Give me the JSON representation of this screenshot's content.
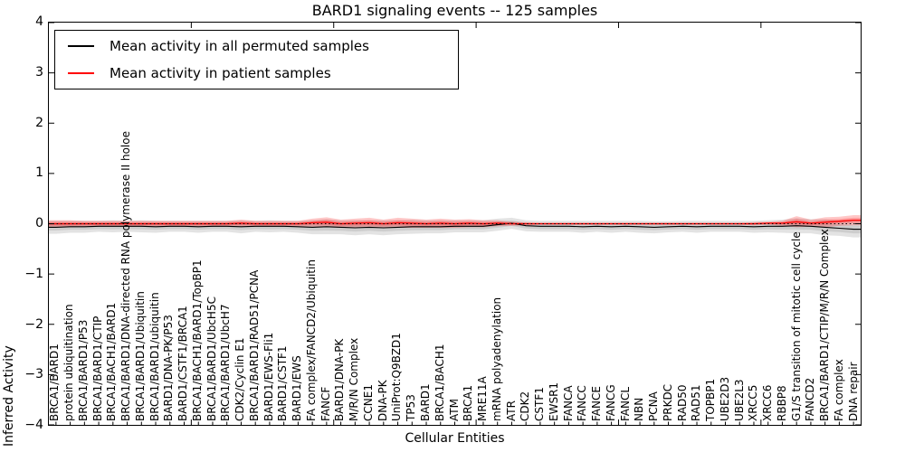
{
  "title": "BARD1 signaling events -- 125 samples",
  "chart_data": {
    "type": "line",
    "title": "BARD1 signaling events -- 125 samples",
    "xlabel": "Cellular Entities",
    "ylabel": "Inferred Activity",
    "ylim": [
      -4,
      4
    ],
    "yticks": [
      4,
      3,
      2,
      1,
      0,
      -1,
      -2,
      -3,
      -4
    ],
    "x_major_tick_every": 10,
    "grid": false,
    "legend_position": "upper left",
    "background_color": "#ffffff",
    "reference_line": {
      "y": 0,
      "color": "#000000",
      "style": "dotted"
    },
    "categories": [
      "BRCA1/BARD1",
      "protein ubiquitination",
      "BRCA1/BARD1/P53",
      "BRCA1/BARD1/CTIP",
      "BRCA1/BACH1/BARD1",
      "BRCA1/BARD1/DNA-directed RNA polymerase II holoe",
      "BRCA1/BARD1/Ubiquitin",
      "BRCA1/BARD1/ubiquitin",
      "BARD1/DNA-PK/P53",
      "BARD1/CSTF1/BRCA1",
      "BRCA1/BACH1/BARD1/TopBP1",
      "BRCA1/BARD1/UbcH5C",
      "BRCA1/BARD1/UbcH7",
      "CDK2/Cyclin E1",
      "BRCA1/BARD1/RAD51/PCNA",
      "BARD1/EWS-Fli1",
      "BARD1/CSTF1",
      "BARD1/EWS",
      "FA complex/FANCD2/Ubiquitin",
      "FANCF",
      "BARD1/DNA-PK",
      "M/R/N Complex",
      "CCNE1",
      "DNA-PK",
      "UniProt:Q9BZD1",
      "TP53",
      "BARD1",
      "BRCA1/BACH1",
      "ATM",
      "BRCA1",
      "MRE11A",
      "mRNA polyadenylation",
      "ATR",
      "CDK2",
      "CSTF1",
      "EWSR1",
      "FANCA",
      "FANCC",
      "FANCE",
      "FANCG",
      "FANCL",
      "NBN",
      "PCNA",
      "PRKDC",
      "RAD50",
      "RAD51",
      "TOPBP1",
      "UBE2D3",
      "UBE2L3",
      "XRCC5",
      "XRCC6",
      "RBBP8",
      "G1/S transition of mitotic cell cycle",
      "FANCD2",
      "BRCA1/BARD1/CTIP/M/R/N Complex",
      "FA complex",
      "DNA repair"
    ],
    "series": [
      {
        "name": "Mean activity in all permuted samples",
        "color": "#000000",
        "band_color": "rgba(128,128,128,0.22)",
        "values": [
          -0.07,
          -0.06,
          -0.06,
          -0.05,
          -0.05,
          -0.05,
          -0.05,
          -0.06,
          -0.05,
          -0.05,
          -0.06,
          -0.05,
          -0.05,
          -0.06,
          -0.05,
          -0.05,
          -0.05,
          -0.06,
          -0.07,
          -0.06,
          -0.07,
          -0.08,
          -0.07,
          -0.08,
          -0.07,
          -0.06,
          -0.06,
          -0.06,
          -0.05,
          -0.05,
          -0.05,
          -0.02,
          0.01,
          -0.04,
          -0.05,
          -0.05,
          -0.05,
          -0.06,
          -0.05,
          -0.06,
          -0.05,
          -0.06,
          -0.07,
          -0.06,
          -0.05,
          -0.06,
          -0.05,
          -0.05,
          -0.05,
          -0.06,
          -0.05,
          -0.05,
          -0.04,
          -0.05,
          -0.07,
          -0.09,
          -0.11
        ],
        "band_halfwidth": [
          0.13,
          0.12,
          0.12,
          0.11,
          0.12,
          0.11,
          0.12,
          0.12,
          0.11,
          0.11,
          0.12,
          0.11,
          0.11,
          0.13,
          0.11,
          0.12,
          0.11,
          0.12,
          0.14,
          0.15,
          0.14,
          0.15,
          0.14,
          0.15,
          0.14,
          0.14,
          0.13,
          0.13,
          0.12,
          0.12,
          0.12,
          0.12,
          0.11,
          0.11,
          0.11,
          0.11,
          0.11,
          0.12,
          0.11,
          0.12,
          0.11,
          0.12,
          0.12,
          0.11,
          0.11,
          0.12,
          0.11,
          0.11,
          0.11,
          0.12,
          0.12,
          0.13,
          0.15,
          0.14,
          0.16,
          0.15,
          0.16
        ]
      },
      {
        "name": "Mean activity in patient samples",
        "color": "#ff0000",
        "band_color": "rgba(255,0,0,0.22)",
        "values": [
          0,
          0,
          0,
          0,
          0,
          0,
          0,
          0,
          0,
          0,
          0,
          0,
          0,
          0.01,
          0,
          0,
          0,
          0,
          0.02,
          0.03,
          0,
          0.01,
          0.02,
          0,
          0.02,
          0.01,
          0,
          0.01,
          0,
          0.01,
          0,
          0.01,
          0,
          0,
          0,
          0,
          0,
          0,
          0,
          0,
          0,
          0,
          0,
          0,
          0,
          0,
          0,
          0,
          0,
          0,
          0.01,
          0.01,
          0.04,
          0.01,
          0.03,
          0.05,
          0.07
        ],
        "band_halfwidth": [
          0.07,
          0.07,
          0.06,
          0.06,
          0.06,
          0.06,
          0.06,
          0.06,
          0.06,
          0.06,
          0.06,
          0.06,
          0.06,
          0.07,
          0.06,
          0.06,
          0.06,
          0.06,
          0.08,
          0.1,
          0.08,
          0.09,
          0.1,
          0.08,
          0.1,
          0.09,
          0.08,
          0.09,
          0.08,
          0.08,
          0.07,
          0.06,
          0.04,
          0.03,
          0.02,
          0.02,
          0.02,
          0.02,
          0.02,
          0.02,
          0.02,
          0.02,
          0.02,
          0.02,
          0.02,
          0.02,
          0.02,
          0.02,
          0.02,
          0.03,
          0.03,
          0.05,
          0.11,
          0.07,
          0.1,
          0.09,
          0.1
        ]
      }
    ]
  }
}
